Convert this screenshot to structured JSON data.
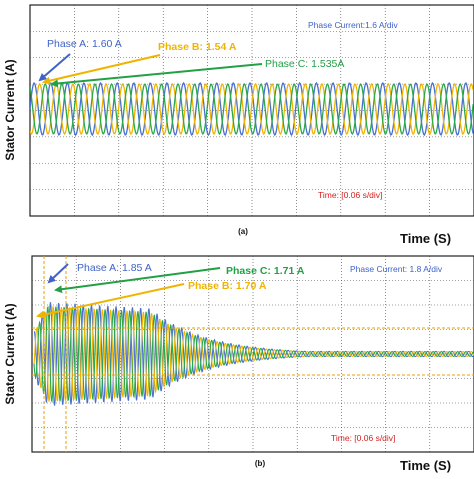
{
  "figure": {
    "ylabel": "Stator Current (A)",
    "xlabel": "Time (S)"
  },
  "chart_data": [
    {
      "type": "line",
      "panel_label": "(a)",
      "ylabel": "Stator Current (A)",
      "xlabel": "Time (S)",
      "scale_text": "Phase Current:1.6 A/div",
      "time_text": "Time: [0.06 s/div]",
      "grid": true,
      "series": [
        {
          "name": "Phase A",
          "color": "#4a6fd1",
          "peak": 1.6,
          "phase_deg": 0
        },
        {
          "name": "Phase B",
          "color": "#f0b400",
          "peak": 1.54,
          "phase_deg": 120
        },
        {
          "name": "Phase C",
          "color": "#2aa84a",
          "peak": 1.535,
          "phase_deg": 240
        }
      ],
      "annotations": [
        {
          "text": "Phase A: 1.60 A",
          "color": "#3f63c8"
        },
        {
          "text": "Phase B: 1.54 A",
          "color": "#f0b400"
        },
        {
          "text": "Phase C: 1.535A",
          "color": "#22a045"
        }
      ]
    },
    {
      "type": "line",
      "panel_label": "(b)",
      "ylabel": "Stator Current (A)",
      "xlabel": "Time (S)",
      "scale_text": "Phase Current: 1.8 A/div",
      "time_text": "Time: [0.06 s/div]",
      "grid": true,
      "series": [
        {
          "name": "Phase A",
          "color": "#4a6fd1",
          "peak": 1.85,
          "phase_deg": 0
        },
        {
          "name": "Phase B",
          "color": "#f0b400",
          "peak": 1.7,
          "phase_deg": 120
        },
        {
          "name": "Phase C",
          "color": "#2aa84a",
          "peak": 1.71,
          "phase_deg": 240
        }
      ],
      "annotations": [
        {
          "text": "Phase A: 1.85 A",
          "color": "#3f63c8"
        },
        {
          "text": "Phase C: 1.71 A",
          "color": "#22a045"
        },
        {
          "text": "Phase B: 1.70 A",
          "color": "#f0b400"
        }
      ]
    }
  ]
}
